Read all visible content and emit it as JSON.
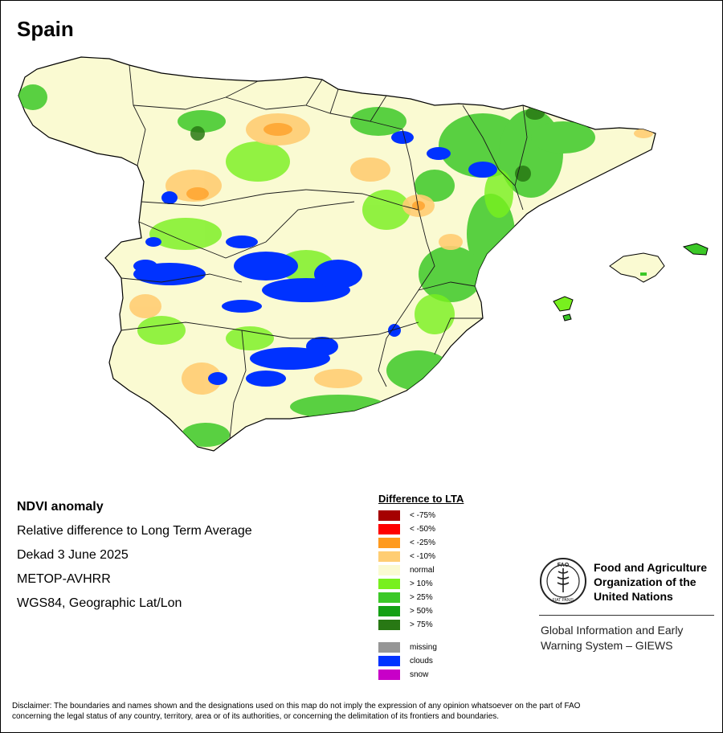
{
  "title": "Spain",
  "info": {
    "heading": "NDVI anomaly",
    "line1": "Relative difference to Long Term Average",
    "line2": "Dekad 3 June 2025",
    "line3": "METOP-AVHRR",
    "line4": "WGS84, Geographic Lat/Lon"
  },
  "legend": {
    "title": "Difference to LTA",
    "items": [
      {
        "label": "< -75%",
        "color": "#a50000"
      },
      {
        "label": "< -50%",
        "color": "#ff0000"
      },
      {
        "label": "< -25%",
        "color": "#ff9a1e"
      },
      {
        "label": "< -10%",
        "color": "#ffcd73"
      },
      {
        "label": "normal",
        "color": "#fafad2"
      },
      {
        "label": "> 10%",
        "color": "#78f01e"
      },
      {
        "label": "> 25%",
        "color": "#3cc828"
      },
      {
        "label": "> 50%",
        "color": "#14a014"
      },
      {
        "label": "> 75%",
        "color": "#287814"
      },
      {
        "label": "missing",
        "color": "#969696"
      },
      {
        "label": "clouds",
        "color": "#0032ff"
      },
      {
        "label": "snow",
        "color": "#c800c8"
      }
    ]
  },
  "fao": {
    "name_line1": "Food and Agriculture",
    "name_line2": "Organization of the",
    "name_line3": "United Nations",
    "logo_text": "FAO",
    "logo_motto": "FIAT PANIS",
    "giews_line1": "Global Information and Early",
    "giews_line2": "Warning System – GIEWS"
  },
  "disclaimer": {
    "line1": "Disclaimer: The boundaries and names shown and the designations used on this map do not imply the expression of any opinion whatsoever on the part of FAO",
    "line2": "concerning the legal status of any country, territory, area or of its authorities, or concerning the delimitation of its frontiers and boundaries."
  }
}
